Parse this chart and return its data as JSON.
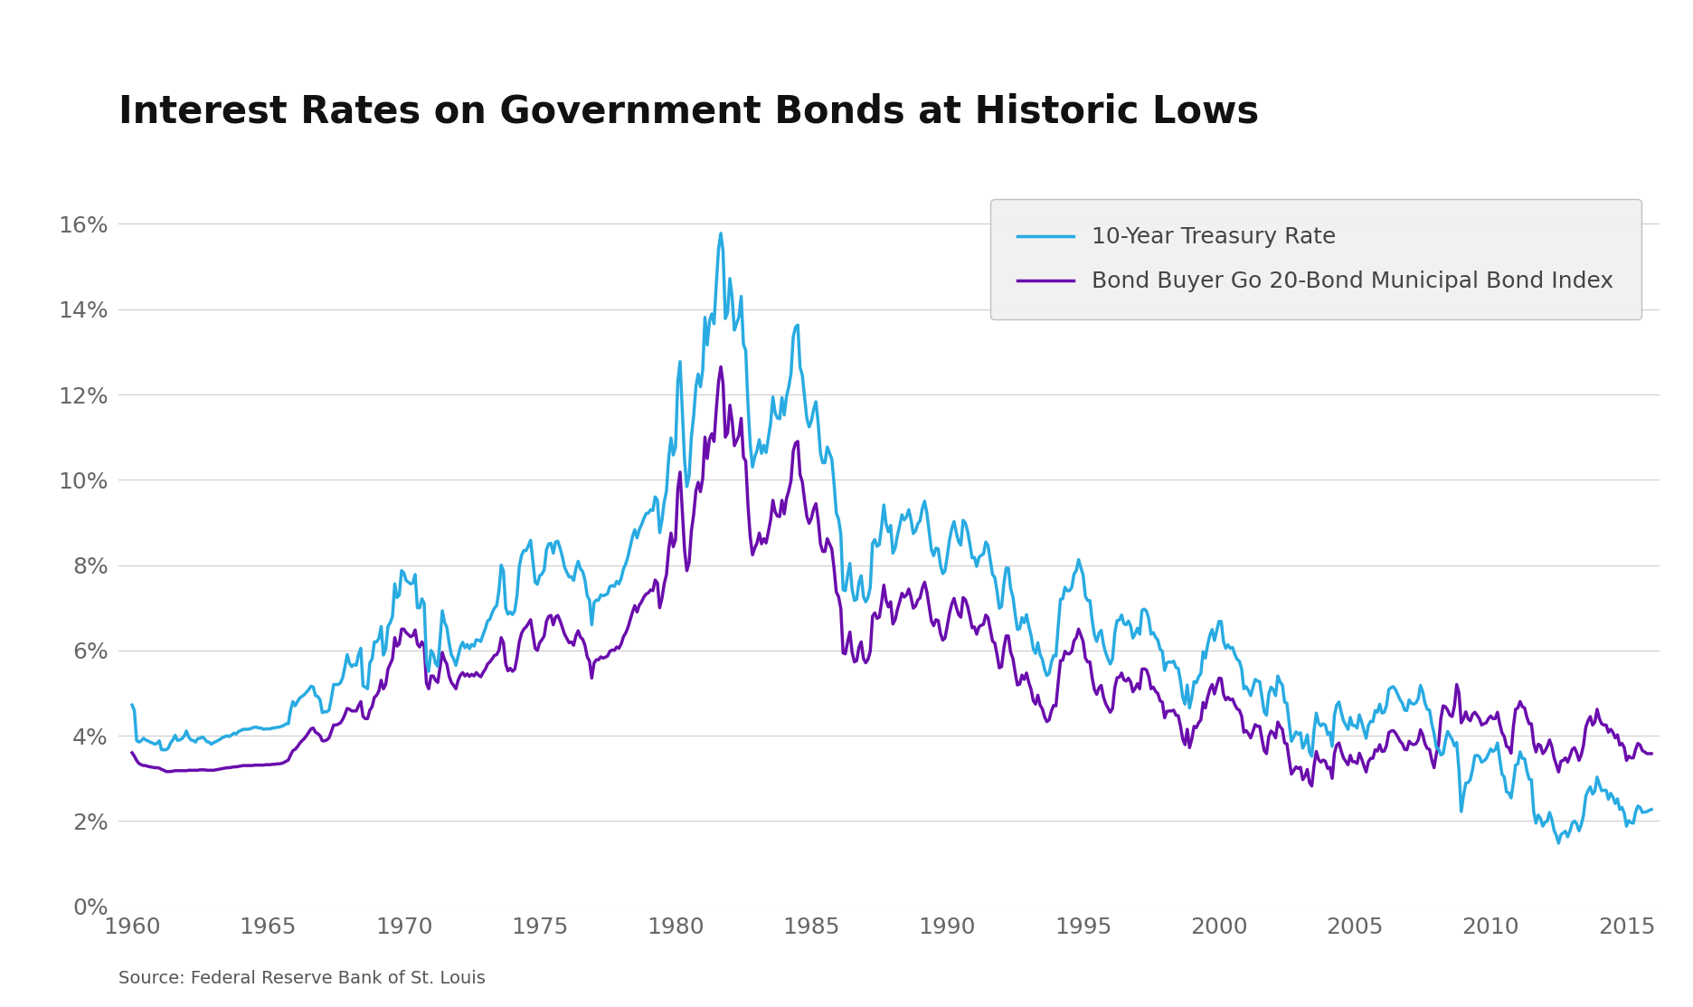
{
  "title": "Interest Rates on Government Bonds at Historic Lows",
  "source_text": "Source: Federal Reserve Bank of St. Louis",
  "legend_entries": [
    "10-Year Treasury Rate",
    "Bond Buyer Go 20-Bond Municipal Bond Index"
  ],
  "line_colors": [
    "#29ABE2",
    "#6A0DAD"
  ],
  "ylim": [
    0,
    0.17
  ],
  "yticks": [
    0.0,
    0.02,
    0.04,
    0.06,
    0.08,
    0.1,
    0.12,
    0.14,
    0.16
  ],
  "ytick_labels": [
    "0%",
    "2%",
    "4%",
    "6%",
    "8%",
    "10%",
    "12%",
    "14%",
    "16%"
  ],
  "xlim": [
    1959.5,
    2016.2
  ],
  "xticks": [
    1960,
    1965,
    1970,
    1975,
    1980,
    1985,
    1990,
    1995,
    2000,
    2005,
    2010,
    2015
  ],
  "title_fontsize": 30,
  "tick_fontsize": 18,
  "source_fontsize": 14,
  "background_color": "#FFFFFF",
  "grid_color": "#CCCCCC",
  "line_width": 2.5,
  "legend_fontsize": 18
}
